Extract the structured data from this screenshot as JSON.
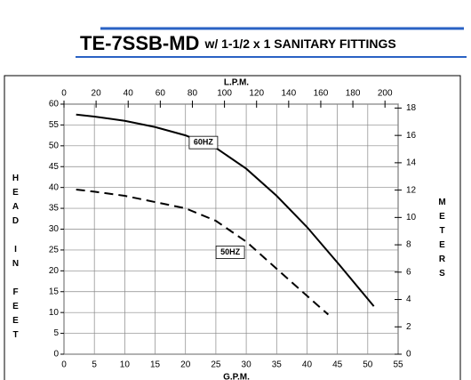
{
  "chart_data": {
    "type": "line",
    "title": "TE-7SSB-MD",
    "subtitle": "w/ 1-1/2 x 1 SANITARY FITTINGS",
    "x_label": "G.P.M.",
    "x2_label": "L.P.M.",
    "y_label": "HEAD IN FEET",
    "y2_label": "METERS",
    "xlim": [
      0,
      55
    ],
    "xticks": [
      0,
      5,
      10,
      15,
      20,
      25,
      30,
      35,
      40,
      45,
      50,
      55
    ],
    "ylim": [
      0,
      60
    ],
    "yticks": [
      0,
      5,
      10,
      15,
      20,
      25,
      30,
      35,
      40,
      45,
      50,
      55,
      60
    ],
    "x2lim": [
      0,
      208.2
    ],
    "x2ticks": [
      0,
      20,
      40,
      60,
      80,
      100,
      120,
      140,
      160,
      180,
      200
    ],
    "y2lim": [
      0,
      18.288
    ],
    "y2ticks": [
      0,
      2,
      4,
      6,
      8,
      10,
      12,
      14,
      16,
      18
    ],
    "grid": true,
    "series": [
      {
        "name": "60HZ",
        "color": "#000000",
        "dashed": false,
        "x": [
          2,
          5,
          10,
          15,
          20,
          25,
          30,
          35,
          40,
          45,
          51
        ],
        "values": [
          57.5,
          57,
          56,
          54.5,
          52.5,
          49.5,
          44.5,
          38,
          30.5,
          22,
          11.5
        ]
      },
      {
        "name": "50HZ",
        "color": "#000000",
        "dashed": true,
        "x": [
          2,
          5,
          10,
          15,
          20,
          25,
          30,
          35,
          40,
          43.5
        ],
        "values": [
          39.5,
          39,
          38,
          36.5,
          35,
          32,
          27,
          20.5,
          14,
          9.5
        ]
      }
    ]
  }
}
